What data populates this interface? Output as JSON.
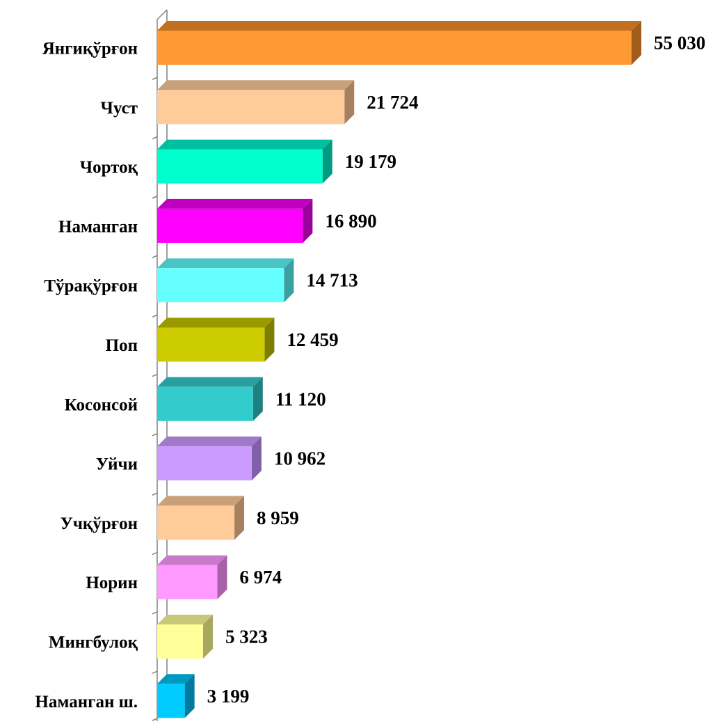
{
  "chart_data": {
    "type": "bar",
    "orientation": "horizontal",
    "style": "3d",
    "title": "",
    "xlabel": "",
    "ylabel": "",
    "grid": false,
    "legend": "none",
    "categories": [
      "Янгиқўрғон",
      "Чуст",
      "Чортоқ",
      "Наманган",
      "Тўрақўрғон",
      "Поп",
      "Косонсой",
      "Уйчи",
      "Учқўрғон",
      "Норин",
      "Мингбулоқ",
      "Наманган ш."
    ],
    "values": [
      55030,
      21724,
      19179,
      16890,
      14713,
      12459,
      11120,
      10962,
      8959,
      6974,
      5323,
      3199
    ],
    "value_labels": [
      "55 030",
      "21 724",
      "19 179",
      "16 890",
      "14 713",
      "12 459",
      "11 120",
      "10 962",
      "8 959",
      "6 974",
      "5 323",
      "3 199"
    ],
    "xlim": [
      0,
      55030
    ],
    "colors": {
      "front": [
        "#FF9933",
        "#FFCC99",
        "#00FFCC",
        "#FF00FF",
        "#66FFFF",
        "#CCCC00",
        "#33CCCC",
        "#CC99FF",
        "#FFCC99",
        "#FF99FF",
        "#FFFF99",
        "#00CCFF"
      ],
      "top": [
        "#C07020",
        "#C8A07A",
        "#00BFA0",
        "#C000C0",
        "#4CC4C4",
        "#9A9A00",
        "#28A0A0",
        "#A07AC8",
        "#C8A07A",
        "#C87AC8",
        "#C8C87A",
        "#0099C0"
      ],
      "side": [
        "#A05C18",
        "#A88060",
        "#009A80",
        "#9A009A",
        "#3AA0A0",
        "#7E7E00",
        "#1E8080",
        "#8060A8",
        "#A88060",
        "#A860A8",
        "#A8A860",
        "#007AA0"
      ]
    }
  }
}
